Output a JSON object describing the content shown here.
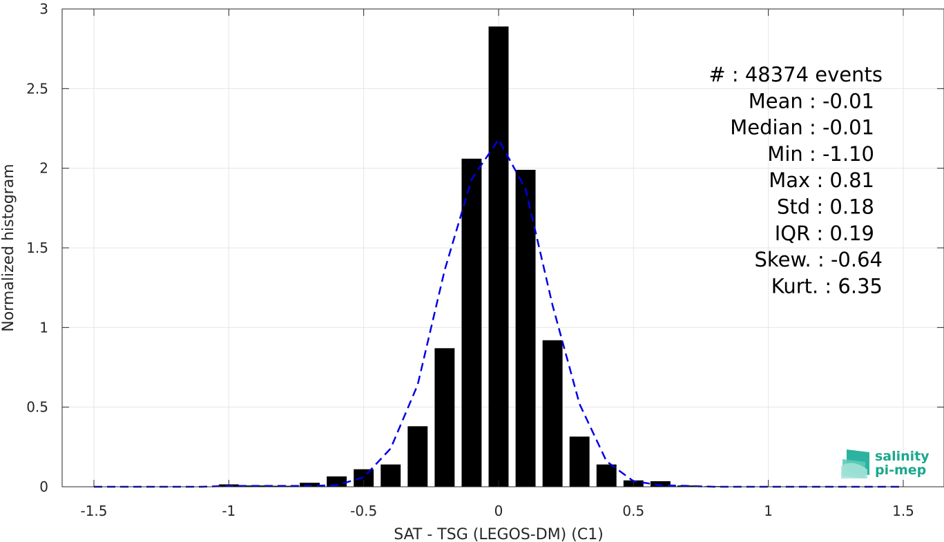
{
  "chart_data": {
    "type": "bar",
    "xlabel": "SAT - TSG (LEGOS-DM) (C1)",
    "ylabel": "Normalized histogram",
    "xlim": [
      -1.5,
      1.5
    ],
    "ylim": [
      0,
      3
    ],
    "xticks": [
      "-1.5",
      "-1",
      "-0.5",
      "0",
      "0.5",
      "1",
      "1.5"
    ],
    "yticks": [
      "0",
      "0.5",
      "1",
      "1.5",
      "2",
      "2.5",
      "3"
    ],
    "grid": true,
    "bar_color": "#000000",
    "bars": {
      "x": [
        -1.0,
        -0.9,
        -0.8,
        -0.7,
        -0.6,
        -0.5,
        -0.4,
        -0.3,
        -0.2,
        -0.1,
        0.0,
        0.1,
        0.2,
        0.3,
        0.4,
        0.5,
        0.6,
        0.7,
        0.8
      ],
      "values": [
        0.015,
        0.008,
        0.006,
        0.025,
        0.065,
        0.11,
        0.14,
        0.38,
        0.87,
        2.06,
        2.89,
        1.99,
        0.92,
        0.315,
        0.14,
        0.04,
        0.035,
        0.008,
        0.004
      ]
    },
    "fit": {
      "style": "dashed",
      "color": "#0000e6",
      "x": [
        -1.5,
        -1.4,
        -1.3,
        -1.2,
        -1.1,
        -1.0,
        -0.9,
        -0.8,
        -0.7,
        -0.6,
        -0.5,
        -0.4,
        -0.3,
        -0.2,
        -0.1,
        0.0,
        0.1,
        0.2,
        0.3,
        0.4,
        0.5,
        0.6,
        0.7,
        0.8,
        0.9,
        1.0,
        1.1,
        1.2,
        1.3,
        1.4,
        1.5
      ],
      "y": [
        0,
        0,
        0,
        0,
        0,
        0.005,
        0.005,
        0.005,
        0.005,
        0.01,
        0.06,
        0.24,
        0.64,
        1.36,
        1.93,
        2.18,
        1.87,
        1.14,
        0.52,
        0.16,
        0.035,
        0.01,
        0.005,
        0,
        0,
        0,
        0,
        0,
        0,
        0,
        0
      ]
    },
    "stats": [
      "#  : 48374 events",
      "Mean : -0.01",
      "Median : -0.01",
      "Min : -1.10",
      "Max : 0.81",
      "Std : 0.18",
      "IQR : 0.19",
      "Skew. : -0.64",
      "Kurt. : 6.35"
    ]
  },
  "logo": {
    "line1": "salinity",
    "line2": "pi-mep",
    "icon": "salinity-pi-mep-logo-icon"
  }
}
